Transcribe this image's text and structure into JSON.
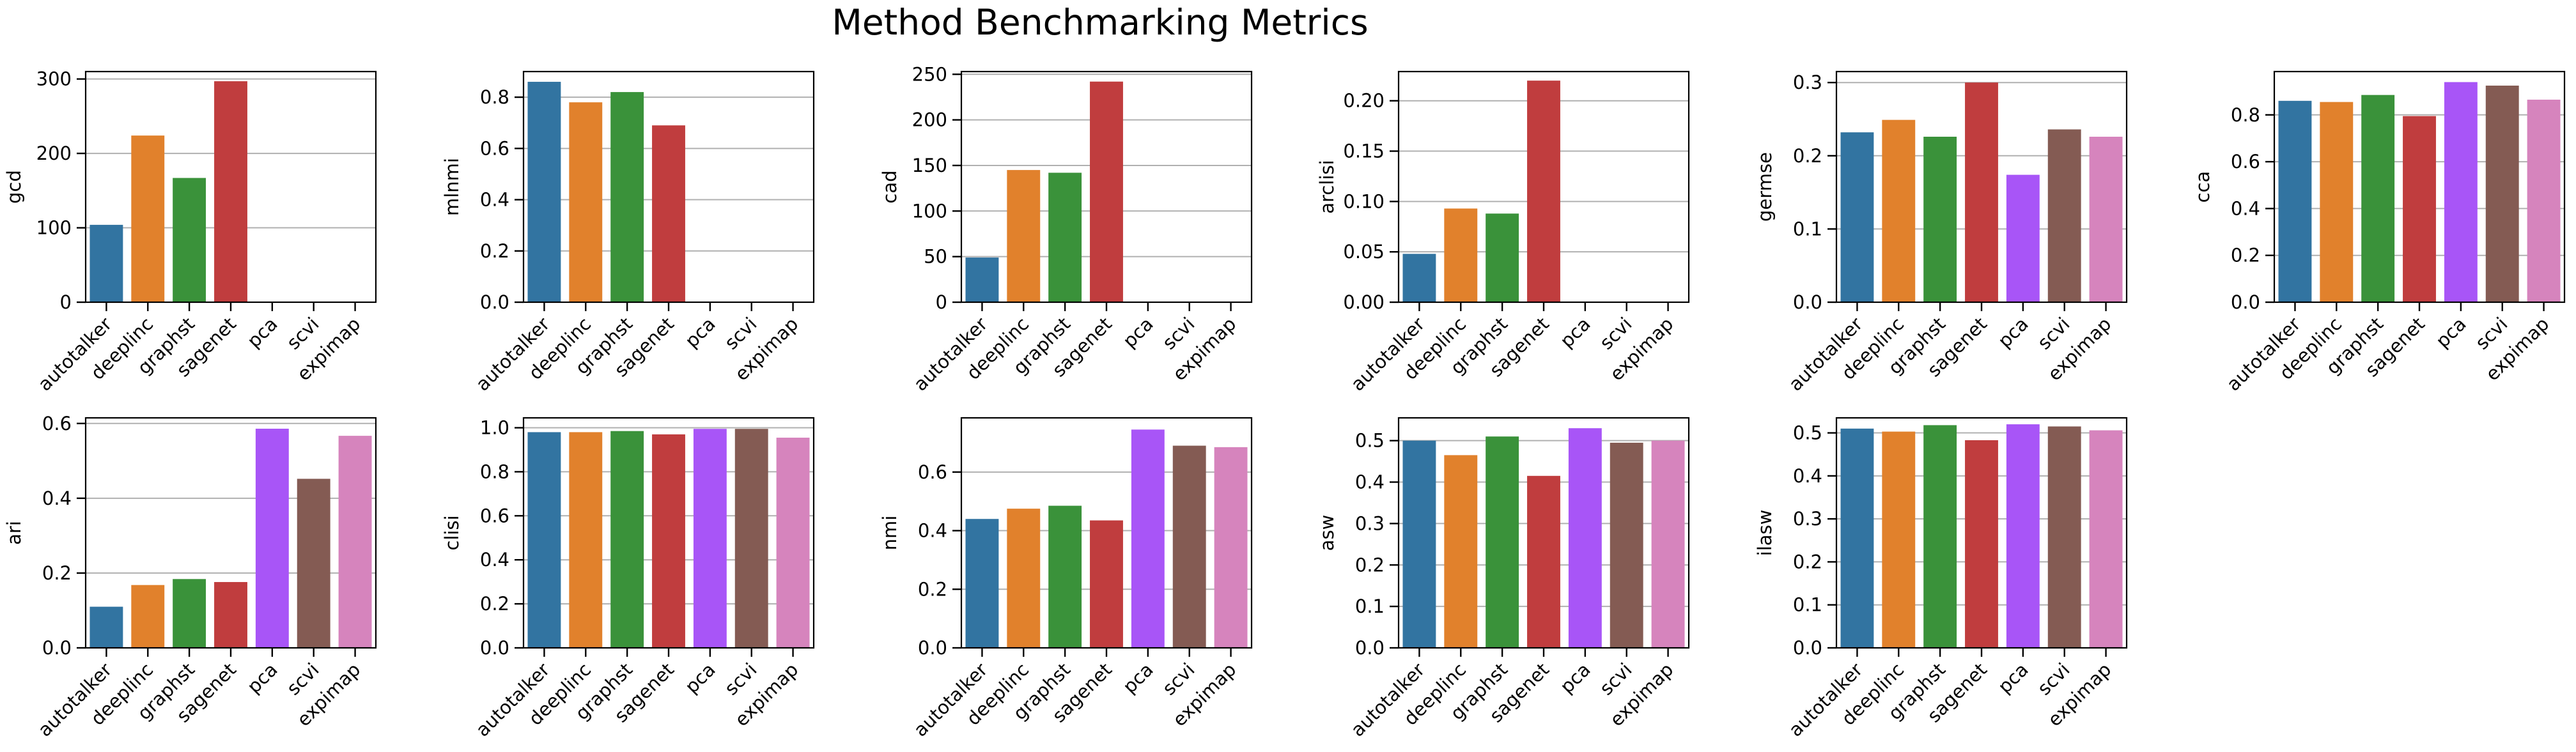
{
  "title": "Method Benchmarking Metrics",
  "chart_data": [
    {
      "type": "bar",
      "ylabel": "gcd",
      "categories": [
        "autotalker",
        "deeplinc",
        "graphst",
        "sagenet",
        "pca",
        "scvi",
        "expimap"
      ],
      "values": [
        104,
        224,
        167,
        297,
        null,
        null,
        null
      ],
      "ylim": [
        0,
        310
      ],
      "yticks": [
        0,
        100,
        200,
        300
      ],
      "ytick_labels": [
        "0",
        "100",
        "200",
        "300"
      ],
      "grid": true
    },
    {
      "type": "bar",
      "ylabel": "mlnmi",
      "categories": [
        "autotalker",
        "deeplinc",
        "graphst",
        "sagenet",
        "pca",
        "scvi",
        "expimap"
      ],
      "values": [
        0.86,
        0.78,
        0.82,
        0.69,
        null,
        null,
        null
      ],
      "ylim": [
        0,
        0.9
      ],
      "yticks": [
        0,
        0.2,
        0.4,
        0.6,
        0.8
      ],
      "ytick_labels": [
        "0.0",
        "0.2",
        "0.4",
        "0.6",
        "0.8"
      ],
      "grid": true
    },
    {
      "type": "bar",
      "ylabel": "cad",
      "categories": [
        "autotalker",
        "deeplinc",
        "graphst",
        "sagenet",
        "pca",
        "scvi",
        "expimap"
      ],
      "values": [
        49,
        145,
        142,
        242,
        null,
        null,
        null
      ],
      "ylim": [
        0,
        253
      ],
      "yticks": [
        0,
        50,
        100,
        150,
        200,
        250
      ],
      "ytick_labels": [
        "0",
        "50",
        "100",
        "150",
        "200",
        "250"
      ],
      "grid": true
    },
    {
      "type": "bar",
      "ylabel": "arclisi",
      "categories": [
        "autotalker",
        "deeplinc",
        "graphst",
        "sagenet",
        "pca",
        "scvi",
        "expimap"
      ],
      "values": [
        0.048,
        0.093,
        0.088,
        0.22,
        null,
        null,
        null
      ],
      "ylim": [
        0,
        0.229
      ],
      "yticks": [
        0,
        0.05,
        0.1,
        0.15,
        0.2
      ],
      "ytick_labels": [
        "0.00",
        "0.05",
        "0.10",
        "0.15",
        "0.20"
      ],
      "grid": true
    },
    {
      "type": "bar",
      "ylabel": "germse",
      "categories": [
        "autotalker",
        "deeplinc",
        "graphst",
        "sagenet",
        "pca",
        "scvi",
        "expimap"
      ],
      "values": [
        0.232,
        0.249,
        0.226,
        0.3,
        0.174,
        0.236,
        0.226
      ],
      "ylim": [
        0,
        0.315
      ],
      "yticks": [
        0,
        0.1,
        0.2,
        0.3
      ],
      "ytick_labels": [
        "0.0",
        "0.1",
        "0.2",
        "0.3"
      ],
      "grid": true
    },
    {
      "type": "bar",
      "ylabel": "cca",
      "categories": [
        "autotalker",
        "deeplinc",
        "graphst",
        "sagenet",
        "pca",
        "scvi",
        "expimap"
      ],
      "values": [
        0.86,
        0.855,
        0.885,
        0.795,
        0.94,
        0.925,
        0.865
      ],
      "ylim": [
        0,
        0.985
      ],
      "yticks": [
        0,
        0.2,
        0.4,
        0.6,
        0.8
      ],
      "ytick_labels": [
        "0.0",
        "0.2",
        "0.4",
        "0.6",
        "0.8"
      ],
      "grid": true
    },
    {
      "type": "bar",
      "ylabel": "ari",
      "categories": [
        "autotalker",
        "deeplinc",
        "graphst",
        "sagenet",
        "pca",
        "scvi",
        "expimap"
      ],
      "values": [
        0.11,
        0.168,
        0.184,
        0.176,
        0.586,
        0.452,
        0.567
      ],
      "ylim": [
        0,
        0.615
      ],
      "yticks": [
        0,
        0.2,
        0.4,
        0.6
      ],
      "ytick_labels": [
        "0.0",
        "0.2",
        "0.4",
        "0.6"
      ],
      "grid": true
    },
    {
      "type": "bar",
      "ylabel": "clisi",
      "categories": [
        "autotalker",
        "deeplinc",
        "graphst",
        "sagenet",
        "pca",
        "scvi",
        "expimap"
      ],
      "values": [
        0.98,
        0.98,
        0.985,
        0.97,
        0.995,
        0.995,
        0.955
      ],
      "ylim": [
        0,
        1.045
      ],
      "yticks": [
        0,
        0.2,
        0.4,
        0.6,
        0.8,
        1.0
      ],
      "ytick_labels": [
        "0.0",
        "0.2",
        "0.4",
        "0.6",
        "0.8",
        "1.0"
      ],
      "grid": true
    },
    {
      "type": "bar",
      "ylabel": "nmi",
      "categories": [
        "autotalker",
        "deeplinc",
        "graphst",
        "sagenet",
        "pca",
        "scvi",
        "expimap"
      ],
      "values": [
        0.44,
        0.475,
        0.485,
        0.435,
        0.745,
        0.69,
        0.685
      ],
      "ylim": [
        0,
        0.785
      ],
      "yticks": [
        0,
        0.2,
        0.4,
        0.6
      ],
      "ytick_labels": [
        "0.0",
        "0.2",
        "0.4",
        "0.6"
      ],
      "grid": true
    },
    {
      "type": "bar",
      "ylabel": "asw",
      "categories": [
        "autotalker",
        "deeplinc",
        "graphst",
        "sagenet",
        "pca",
        "scvi",
        "expimap"
      ],
      "values": [
        0.5,
        0.465,
        0.51,
        0.415,
        0.53,
        0.495,
        0.5
      ],
      "ylim": [
        0,
        0.555
      ],
      "yticks": [
        0,
        0.1,
        0.2,
        0.3,
        0.4,
        0.5
      ],
      "ytick_labels": [
        "0.0",
        "0.1",
        "0.2",
        "0.3",
        "0.4",
        "0.5"
      ],
      "grid": true
    },
    {
      "type": "bar",
      "ylabel": "ilasw",
      "categories": [
        "autotalker",
        "deeplinc",
        "graphst",
        "sagenet",
        "pca",
        "scvi",
        "expimap"
      ],
      "values": [
        0.51,
        0.503,
        0.518,
        0.483,
        0.52,
        0.515,
        0.506
      ],
      "ylim": [
        0,
        0.535
      ],
      "yticks": [
        0,
        0.1,
        0.2,
        0.3,
        0.4,
        0.5
      ],
      "ytick_labels": [
        "0.0",
        "0.1",
        "0.2",
        "0.3",
        "0.4",
        "0.5"
      ],
      "grid": true
    }
  ],
  "palette": {
    "autotalker": "#3274a1",
    "deeplinc": "#e1812c",
    "graphst": "#3a923a",
    "sagenet": "#c03d3e",
    "pca": "#a855f7",
    "scvi": "#845b53",
    "expimap": "#d684bd"
  }
}
